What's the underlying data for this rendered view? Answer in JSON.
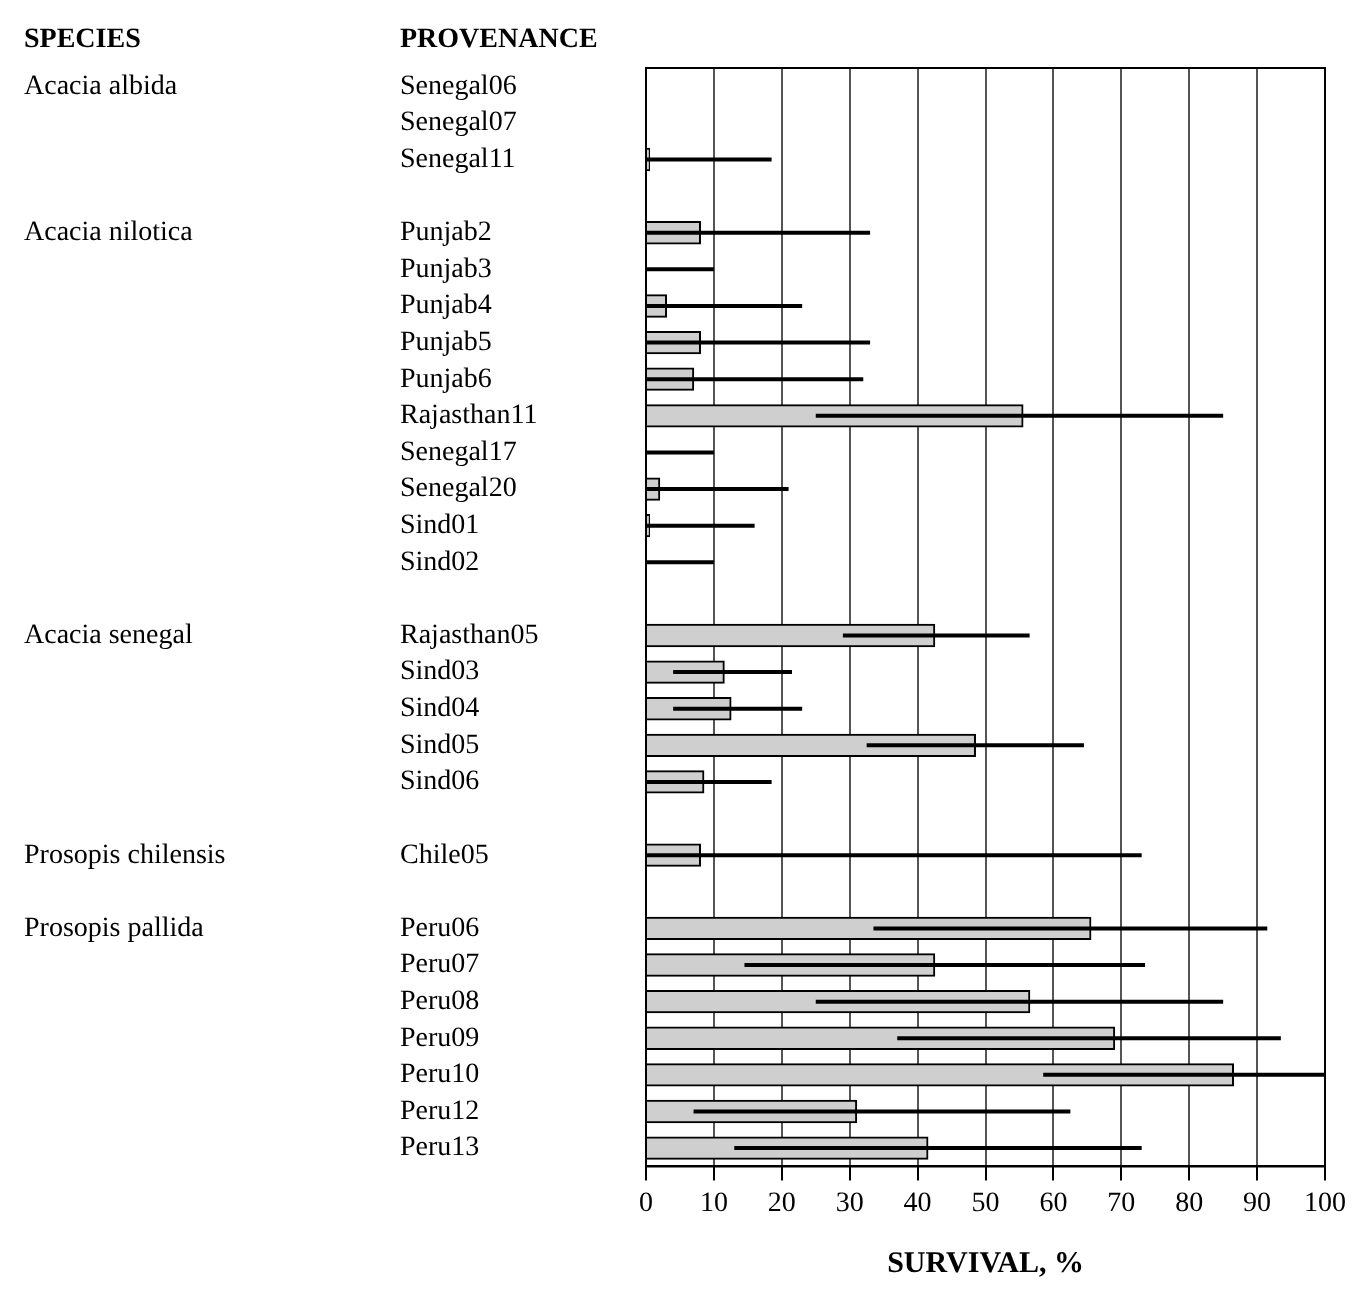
{
  "chart_data": {
    "type": "bar",
    "orientation": "horizontal",
    "xlabel": "SURVIVAL, %",
    "categories": [
      "Senegal06",
      "Senegal07",
      "Senegal11",
      null,
      "Punjab2",
      "Punjab3",
      "Punjab4",
      "Punjab5",
      "Punjab6",
      "Rajasthan11",
      "Senegal17",
      "Senegal20",
      "Sind01",
      "Sind02",
      null,
      "Rajasthan05",
      "Sind03",
      "Sind04",
      "Sind05",
      "Sind06",
      null,
      "Chile05",
      null,
      "Peru06",
      "Peru07",
      "Peru08",
      "Peru09",
      "Peru10",
      "Peru12",
      "Peru13"
    ],
    "values": [
      null,
      null,
      0.5,
      null,
      8,
      0,
      3,
      8,
      7,
      55.5,
      0,
      2,
      0.5,
      0,
      null,
      42.5,
      11.5,
      12.5,
      48.5,
      8.5,
      null,
      8,
      null,
      65.5,
      42.5,
      56.5,
      69,
      86.5,
      31,
      41.5
    ],
    "errors": [
      null,
      null,
      [
        0,
        18.5
      ],
      null,
      [
        0,
        33
      ],
      [
        0,
        10
      ],
      [
        0,
        23
      ],
      [
        0,
        33
      ],
      [
        0,
        32
      ],
      [
        25,
        85
      ],
      [
        0,
        10
      ],
      [
        0,
        21
      ],
      [
        0,
        16
      ],
      [
        0,
        10
      ],
      null,
      [
        29,
        56.5
      ],
      [
        4,
        21.5
      ],
      [
        4,
        23
      ],
      [
        32.5,
        64.5
      ],
      [
        0,
        18.5
      ],
      null,
      [
        0,
        73
      ],
      null,
      [
        33.5,
        91.5
      ],
      [
        14.5,
        73.5
      ],
      [
        25,
        85
      ],
      [
        37,
        93.5
      ],
      [
        58.5,
        100
      ],
      [
        7,
        62.5
      ],
      [
        13,
        73
      ]
    ],
    "color": "#cfcfcf",
    "xlim": [
      0,
      100
    ],
    "xticks": [
      0,
      10,
      20,
      30,
      40,
      50,
      60,
      70,
      80,
      90,
      100
    ],
    "grid": "x",
    "legend": false,
    "annotations": [
      "SPECIES",
      "PROVENANCE",
      "Acacia albida",
      "Acacia nilotica",
      "Acacia senegal",
      "Prosopis chilensis",
      "Prosopis pallida"
    ]
  }
}
